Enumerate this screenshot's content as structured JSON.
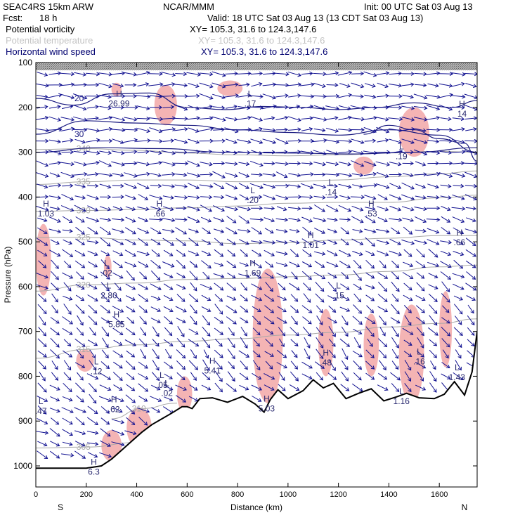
{
  "header": {
    "model": "SEAC4RS 15km ARW",
    "org": "NCAR/MMM",
    "init": "Init: 00 UTC Sat 03 Aug 13",
    "fcst_label": "Fcst:",
    "fcst_value": "18 h",
    "valid": "Valid: 18 UTC Sat 03 Aug 13 (13 CDT Sat 03 Aug 13)",
    "fields": [
      {
        "name": "Potential vorticity",
        "xy": "XY= 105.3, 31.6 to 124.3,147.6",
        "color": "#000000"
      },
      {
        "name": "Potential temperature",
        "xy": "XY= 105.3, 31.6 to 124.3,147.6",
        "color": "#b4b4b4"
      },
      {
        "name": "Horizontal wind speed",
        "xy": "XY= 105.3, 31.6 to 124.3,147.6",
        "color": "#000080"
      }
    ]
  },
  "colors": {
    "theta": "#a8a8a8",
    "pv_fill": "#f4b4b4",
    "wind": "#101090",
    "speed_contour": "#1a1a80",
    "label": "#2a2a70",
    "terrain": "#000000"
  },
  "chart_data": {
    "type": "cross-section",
    "xlabel": "Distance (km)",
    "ylabel": "Pressure (hPa)",
    "xlim": [
      0,
      1750
    ],
    "ylim": [
      1050,
      100
    ],
    "x_ticks": [
      "0",
      "200",
      "400",
      "600",
      "800",
      "1000",
      "1200",
      "1400",
      "1600"
    ],
    "x_tick_values": [
      0,
      200,
      400,
      600,
      800,
      1000,
      1200,
      1400,
      1600
    ],
    "y_ticks": [
      "100",
      "200",
      "300",
      "400",
      "500",
      "600",
      "700",
      "800",
      "900",
      "1000"
    ],
    "y_tick_values": [
      100,
      200,
      300,
      400,
      500,
      600,
      700,
      800,
      900,
      1000
    ],
    "end_labels": {
      "left": "S",
      "right": "N"
    },
    "terrain_pressure": [
      [
        0,
        1005
      ],
      [
        200,
        1005
      ],
      [
        260,
        1000
      ],
      [
        300,
        985
      ],
      [
        340,
        965
      ],
      [
        380,
        945
      ],
      [
        420,
        925
      ],
      [
        460,
        908
      ],
      [
        500,
        895
      ],
      [
        540,
        882
      ],
      [
        580,
        868
      ],
      [
        600,
        868
      ],
      [
        620,
        872
      ],
      [
        650,
        850
      ],
      [
        700,
        848
      ],
      [
        760,
        858
      ],
      [
        820,
        845
      ],
      [
        870,
        862
      ],
      [
        905,
        880
      ],
      [
        930,
        852
      ],
      [
        960,
        830
      ],
      [
        1000,
        850
      ],
      [
        1060,
        832
      ],
      [
        1100,
        808
      ],
      [
        1140,
        826
      ],
      [
        1180,
        816
      ],
      [
        1230,
        850
      ],
      [
        1280,
        838
      ],
      [
        1330,
        828
      ],
      [
        1380,
        855
      ],
      [
        1430,
        846
      ],
      [
        1470,
        838
      ],
      [
        1520,
        848
      ],
      [
        1580,
        850
      ],
      [
        1620,
        840
      ],
      [
        1660,
        812
      ],
      [
        1700,
        842
      ],
      [
        1730,
        790
      ],
      [
        1750,
        700
      ]
    ],
    "theta_contours": [
      {
        "label": "305",
        "points": [
          [
            0,
            960
          ],
          [
            200,
            958
          ],
          [
            400,
            948
          ],
          [
            600,
            940
          ]
        ]
      },
      {
        "label": "310",
        "points": [
          [
            300,
            895
          ],
          [
            420,
            872
          ],
          [
            560,
            860
          ]
        ]
      },
      {
        "label": "315",
        "points": [
          [
            0,
            760
          ],
          [
            200,
            740
          ],
          [
            400,
            730
          ],
          [
            600,
            722
          ],
          [
            800,
            716
          ],
          [
            1000,
            708
          ],
          [
            1200,
            702
          ],
          [
            1400,
            690
          ],
          [
            1600,
            682
          ],
          [
            1750,
            672
          ]
        ]
      },
      {
        "label": "320",
        "points": [
          [
            0,
            610
          ],
          [
            200,
            596
          ],
          [
            400,
            592
          ],
          [
            600,
            584
          ],
          [
            800,
            582
          ],
          [
            1000,
            578
          ],
          [
            1200,
            574
          ],
          [
            1400,
            566
          ],
          [
            1600,
            556
          ],
          [
            1750,
            552
          ]
        ]
      },
      {
        "label": "325",
        "points": [
          [
            0,
            490
          ],
          [
            200,
            490
          ],
          [
            400,
            496
          ],
          [
            600,
            498
          ],
          [
            800,
            504
          ],
          [
            1000,
            502
          ],
          [
            1200,
            496
          ],
          [
            1400,
            492
          ],
          [
            1600,
            486
          ],
          [
            1750,
            486
          ]
        ]
      },
      {
        "label": "330",
        "points": [
          [
            0,
            432
          ],
          [
            200,
            430
          ],
          [
            400,
            428
          ],
          [
            600,
            424
          ],
          [
            800,
            420
          ],
          [
            1000,
            414
          ],
          [
            1200,
            412
          ],
          [
            1400,
            412
          ],
          [
            1600,
            402
          ],
          [
            1750,
            396
          ]
        ]
      },
      {
        "label": "335",
        "points": [
          [
            0,
            372
          ],
          [
            200,
            366
          ],
          [
            400,
            362
          ],
          [
            600,
            362
          ],
          [
            800,
            366
          ],
          [
            1000,
            366
          ],
          [
            1200,
            362
          ],
          [
            1400,
            355
          ],
          [
            1600,
            348
          ],
          [
            1750,
            342
          ]
        ]
      },
      {
        "label": "340",
        "points": [
          [
            0,
            294
          ],
          [
            200,
            292
          ],
          [
            400,
            296
          ],
          [
            600,
            302
          ],
          [
            800,
            306
          ],
          [
            1000,
            308
          ],
          [
            1200,
            306
          ],
          [
            1400,
            302
          ],
          [
            1600,
            298
          ],
          [
            1750,
            300
          ]
        ]
      }
    ],
    "speed_contours": [
      {
        "label": "30",
        "points": [
          [
            0,
            260
          ],
          [
            200,
            230
          ],
          [
            400,
            235
          ],
          [
            600,
            240
          ],
          [
            800,
            250
          ],
          [
            1000,
            256
          ],
          [
            1200,
            262
          ],
          [
            1400,
            250
          ],
          [
            1600,
            262
          ],
          [
            1750,
            300
          ]
        ]
      },
      {
        "label": "20",
        "points": [
          [
            0,
            180
          ],
          [
            150,
            195
          ],
          [
            300,
            170
          ],
          [
            450,
            168
          ],
          [
            600,
            200
          ],
          [
            750,
            205
          ],
          [
            900,
            198
          ],
          [
            1050,
            200
          ],
          [
            1200,
            205
          ],
          [
            1350,
            200
          ],
          [
            1500,
            190
          ],
          [
            1650,
            200
          ],
          [
            1750,
            185
          ]
        ]
      },
      {
        "label": "",
        "points": [
          [
            0,
            300
          ],
          [
            250,
            290
          ],
          [
            500,
            292
          ],
          [
            750,
            300
          ],
          [
            1000,
            302
          ],
          [
            1250,
            304
          ],
          [
            1500,
            300
          ],
          [
            1750,
            290
          ]
        ]
      },
      {
        "label": "",
        "points": [
          [
            1300,
            260
          ],
          [
            1400,
            240
          ],
          [
            1500,
            250
          ],
          [
            1600,
            270
          ],
          [
            1700,
            280
          ],
          [
            1750,
            320
          ]
        ]
      }
    ],
    "pv_regions": [
      {
        "x": [
          470,
          560
        ],
        "p": [
          150,
          240
        ]
      },
      {
        "x": [
          300,
          340
        ],
        "p": [
          145,
          175
        ]
      },
      {
        "x": [
          720,
          820
        ],
        "p": [
          140,
          175
        ]
      },
      {
        "x": [
          1440,
          1560
        ],
        "p": [
          200,
          310
        ]
      },
      {
        "x": [
          1260,
          1340
        ],
        "p": [
          310,
          350
        ]
      },
      {
        "x": [
          0,
          60
        ],
        "p": [
          460,
          620
        ]
      },
      {
        "x": [
          270,
          300
        ],
        "p": [
          530,
          580
        ]
      },
      {
        "x": [
          860,
          980
        ],
        "p": [
          560,
          860
        ]
      },
      {
        "x": [
          1120,
          1180
        ],
        "p": [
          650,
          800
        ]
      },
      {
        "x": [
          1300,
          1360
        ],
        "p": [
          660,
          800
        ]
      },
      {
        "x": [
          1440,
          1540
        ],
        "p": [
          640,
          860
        ]
      },
      {
        "x": [
          1600,
          1650
        ],
        "p": [
          610,
          780
        ]
      },
      {
        "x": [
          160,
          230
        ],
        "p": [
          740,
          790
        ]
      },
      {
        "x": [
          360,
          460
        ],
        "p": [
          870,
          960
        ]
      },
      {
        "x": [
          260,
          340
        ],
        "p": [
          920,
          990
        ]
      },
      {
        "x": [
          560,
          620
        ],
        "p": [
          800,
          880
        ]
      }
    ],
    "hl_labels": [
      {
        "letter": "H",
        "value": "1.03",
        "x": 40,
        "p": 428
      },
      {
        "letter": "H",
        "value": ".66",
        "x": 490,
        "p": 428
      },
      {
        "letter": "H",
        "value": ".53",
        "x": 1330,
        "p": 428
      },
      {
        "letter": "H",
        "value": ".66",
        "x": 1680,
        "p": 492
      },
      {
        "letter": "H",
        "value": "1.01",
        "x": 1090,
        "p": 498
      },
      {
        "letter": "H",
        "value": "1.69",
        "x": 860,
        "p": 560
      },
      {
        "letter": "L",
        "value": ".02",
        "x": 280,
        "p": 560
      },
      {
        "letter": "L",
        "value": "2.80",
        "x": 290,
        "p": 610
      },
      {
        "letter": "L",
        "value": ".15",
        "x": 1200,
        "p": 610
      },
      {
        "letter": "H",
        "value": "5.85",
        "x": 320,
        "p": 675
      },
      {
        "letter": "H",
        "value": ".48",
        "x": 1150,
        "p": 760
      },
      {
        "letter": "H",
        "value": "5.41",
        "x": 700,
        "p": 778
      },
      {
        "letter": "L",
        "value": ".12",
        "x": 240,
        "p": 780
      },
      {
        "letter": "L",
        "value": ".16",
        "x": 1520,
        "p": 758
      },
      {
        "letter": "L",
        "value": "1.43",
        "x": 1670,
        "p": 793
      },
      {
        "letter": "L",
        "value": ".05",
        "x": 500,
        "p": 810
      },
      {
        "letter": "L",
        "value": ".02",
        "x": 520,
        "p": 828
      },
      {
        "letter": "H",
        "value": ".62",
        "x": 310,
        "p": 864
      },
      {
        "letter": "L",
        "value": ".47",
        "x": 20,
        "p": 868
      },
      {
        "letter": "H",
        "value": "5.03",
        "x": 915,
        "p": 863
      },
      {
        "letter": "L",
        "value": "1.16",
        "x": 1450,
        "p": 846
      },
      {
        "letter": "H",
        "value": "26.99",
        "x": 330,
        "p": 182
      },
      {
        "letter": "L",
        "value": ".17",
        "x": 850,
        "p": 182
      },
      {
        "letter": "L",
        "value": ".14",
        "x": 1170,
        "p": 380
      },
      {
        "letter": "L",
        "value": ".20",
        "x": 860,
        "p": 398
      },
      {
        "letter": "H",
        "value": "14",
        "x": 1690,
        "p": 205
      },
      {
        "letter": "L",
        "value": ".19",
        "x": 1450,
        "p": 300
      },
      {
        "letter": "H",
        "value": "6.3",
        "x": 230,
        "p": 1004
      }
    ],
    "wind_grid": {
      "x_step": 50,
      "p_step": 25
    },
    "wind_levels": [
      {
        "p": 150,
        "u": 1.0,
        "v": 0.05
      },
      {
        "p": 250,
        "u": 1.0,
        "v": 0.08
      },
      {
        "p": 350,
        "u": 0.9,
        "v": 0.15
      },
      {
        "p": 450,
        "u": 0.7,
        "v": 0.25
      },
      {
        "p": 550,
        "u": 0.55,
        "v": 0.35
      },
      {
        "p": 650,
        "u": 0.55,
        "v": 0.45
      },
      {
        "p": 750,
        "u": 0.5,
        "v": 0.55
      },
      {
        "p": 850,
        "u": 0.6,
        "v": 0.45
      },
      {
        "p": 950,
        "u": 0.7,
        "v": 0.25
      }
    ]
  }
}
